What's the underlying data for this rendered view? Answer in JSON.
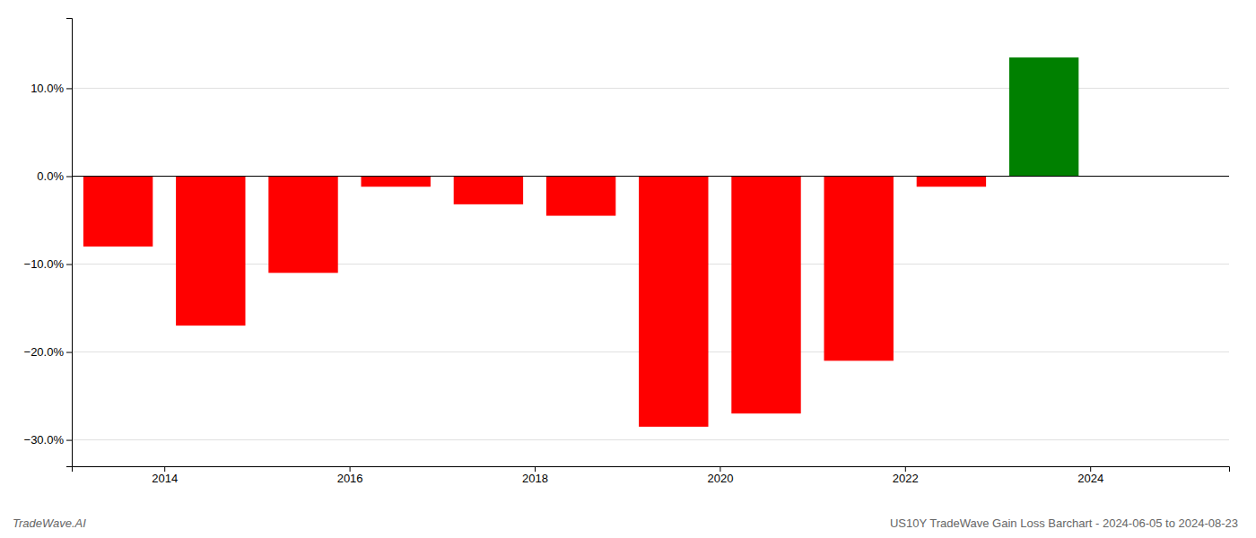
{
  "chart_data": {
    "type": "bar",
    "title": "US10Y TradeWave Gain Loss Barchart - 2024-06-05 to 2024-08-23",
    "annotations": [
      "TradeWave.AI"
    ],
    "x": [
      2013.5,
      2014.5,
      2015.5,
      2016.5,
      2017.5,
      2018.5,
      2019.5,
      2020.5,
      2021.5,
      2022.5,
      2023.5
    ],
    "values": [
      -8.0,
      -17.0,
      -11.0,
      -1.2,
      -3.2,
      -4.5,
      -28.5,
      -27.0,
      -21.0,
      -1.2,
      13.5
    ],
    "colors": [
      "#ff0000",
      "#ff0000",
      "#ff0000",
      "#ff0000",
      "#ff0000",
      "#ff0000",
      "#ff0000",
      "#ff0000",
      "#ff0000",
      "#ff0000",
      "#008000"
    ],
    "xlim": [
      2013.0,
      2025.5
    ],
    "xticks": [
      2014,
      2016,
      2018,
      2020,
      2022,
      2024
    ],
    "ylim": [
      -33,
      18
    ],
    "yticks": [
      {
        "value": 10.0,
        "label": "10.0%"
      },
      {
        "value": 0.0,
        "label": "0.0%"
      },
      {
        "value": -10.0,
        "label": "−10.0%"
      },
      {
        "value": -20.0,
        "label": "−20.0%"
      },
      {
        "value": -30.0,
        "label": "−30.0%"
      }
    ],
    "grid": true
  }
}
